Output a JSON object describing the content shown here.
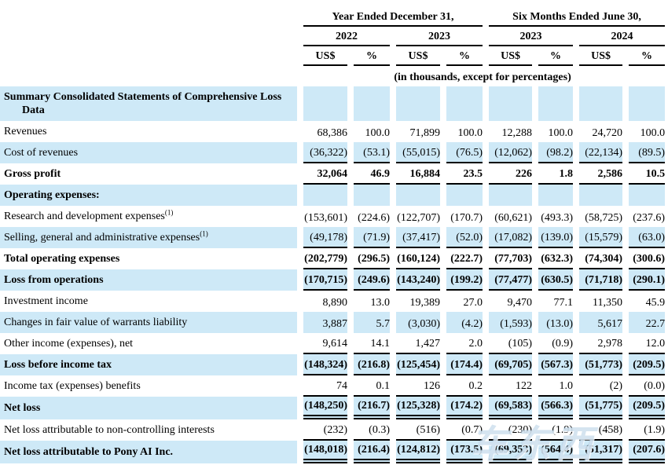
{
  "table": {
    "header": {
      "group1": "Year Ended December 31,",
      "group2": "Six Months Ended June 30,",
      "years": [
        "2022",
        "2023",
        "2023",
        "2024"
      ],
      "units": [
        "US$",
        "%",
        "US$",
        "%",
        "US$",
        "%",
        "US$",
        "%"
      ],
      "note": "(in thousands, except for percentages)"
    },
    "rows": [
      {
        "label": "Summary Consolidated Statements of Comprehensive Loss Data",
        "values": [
          "",
          "",
          "",
          "",
          "",
          "",
          "",
          ""
        ]
      },
      {
        "label": "Revenues",
        "values": [
          "68,386",
          "100.0",
          "71,899",
          "100.0",
          "12,288",
          "100.0",
          "24,720",
          "100.0"
        ]
      },
      {
        "label": "Cost of revenues",
        "values": [
          "(36,322)",
          "(53.1)",
          "(55,015)",
          "(76.5)",
          "(12,062)",
          "(98.2)",
          "(22,134)",
          "(89.5)"
        ]
      },
      {
        "label": "Gross profit",
        "values": [
          "32,064",
          "46.9",
          "16,884",
          "23.5",
          "226",
          "1.8",
          "2,586",
          "10.5"
        ]
      },
      {
        "label": "Operating expenses:",
        "values": [
          "",
          "",
          "",
          "",
          "",
          "",
          "",
          ""
        ]
      },
      {
        "label": "Research and development expenses",
        "sup": "(1)",
        "values": [
          "(153,601)",
          "(224.6)",
          "(122,707)",
          "(170.7)",
          "(60,621)",
          "(493.3)",
          "(58,725)",
          "(237.6)"
        ]
      },
      {
        "label": "Selling, general and administrative expenses",
        "sup": "(1)",
        "values": [
          "(49,178)",
          "(71.9)",
          "(37,417)",
          "(52.0)",
          "(17,082)",
          "(139.0)",
          "(15,579)",
          "(63.0)"
        ]
      },
      {
        "label": "Total operating expenses",
        "values": [
          "(202,779)",
          "(296.5)",
          "(160,124)",
          "(222.7)",
          "(77,703)",
          "(632.3)",
          "(74,304)",
          "(300.6)"
        ]
      },
      {
        "label": "Loss from operations",
        "values": [
          "(170,715)",
          "(249.6)",
          "(143,240)",
          "(199.2)",
          "(77,477)",
          "(630.5)",
          "(71,718)",
          "(290.1)"
        ]
      },
      {
        "label": "Investment income",
        "values": [
          "8,890",
          "13.0",
          "19,389",
          "27.0",
          "9,470",
          "77.1",
          "11,350",
          "45.9"
        ]
      },
      {
        "label": "Changes in fair value of warrants liability",
        "values": [
          "3,887",
          "5.7",
          "(3,030)",
          "(4.2)",
          "(1,593)",
          "(13.0)",
          "5,617",
          "22.7"
        ]
      },
      {
        "label": "Other income (expenses), net",
        "values": [
          "9,614",
          "14.1",
          "1,427",
          "2.0",
          "(105)",
          "(0.9)",
          "2,978",
          "12.0"
        ]
      },
      {
        "label": "Loss before income tax",
        "values": [
          "(148,324)",
          "(216.8)",
          "(125,454)",
          "(174.4)",
          "(69,705)",
          "(567.3)",
          "(51,773)",
          "(209.5)"
        ]
      },
      {
        "label": "Income tax (expenses) benefits",
        "values": [
          "74",
          "0.1",
          "126",
          "0.2",
          "122",
          "1.0",
          "(2)",
          "(0.0)"
        ]
      },
      {
        "label": "Net loss",
        "values": [
          "(148,250)",
          "(216.7)",
          "(125,328)",
          "(174.2)",
          "(69,583)",
          "(566.3)",
          "(51,775)",
          "(209.5)"
        ]
      },
      {
        "label": "Net loss attributable to non-controlling interests",
        "values": [
          "(232)",
          "(0.3)",
          "(516)",
          "(0.7)",
          "(230)",
          "(1.9)",
          "(458)",
          "(1.9)"
        ]
      },
      {
        "label": "Net loss attributable to Pony AI Inc.",
        "values": [
          "(148,018)",
          "(216.4)",
          "(124,812)",
          "(173.5)",
          "(69,353)",
          "(564.4)",
          "(51,317)",
          "(207.6)"
        ]
      }
    ]
  },
  "watermark": "车东西"
}
